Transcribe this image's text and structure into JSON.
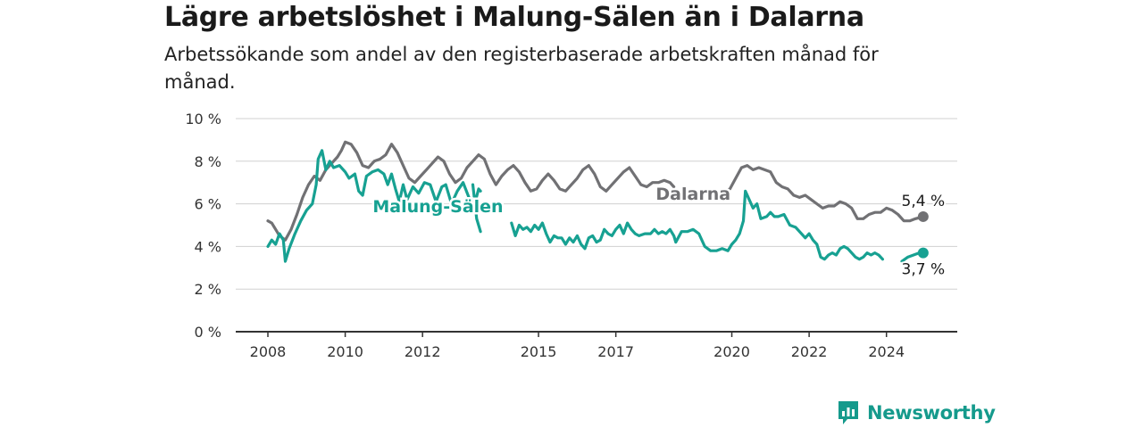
{
  "header": {
    "title": "Lägre arbetslöshet i Malung-Sälen än i Dalarna",
    "subtitle": "Arbetssökande som andel av den registerbaserade arbetskraften månad för månad."
  },
  "brand": {
    "name": "Newsworthy",
    "color": "#159a8c"
  },
  "colors": {
    "dalarna": "#717174",
    "malung": "#17a192",
    "grid": "#d0d0d0",
    "axis": "#333333"
  },
  "chart_data": {
    "type": "line",
    "title": "Lägre arbetslöshet i Malung-Sälen än i Dalarna",
    "subtitle": "Arbetssökande som andel av den registerbaserade arbetskraften månad för månad.",
    "xlabel": "",
    "ylabel": "",
    "xlim": [
      2008.0,
      2025.0
    ],
    "ylim": [
      0,
      10
    ],
    "yticks": [
      0,
      2,
      4,
      6,
      8,
      10
    ],
    "ytick_labels": [
      "0 %",
      "2 %",
      "4 %",
      "6 %",
      "8 %",
      "10 %"
    ],
    "xticks": [
      2008,
      2010,
      2012,
      2015,
      2017,
      2020,
      2022,
      2024
    ],
    "xtick_labels": [
      "2008",
      "2010",
      "2012",
      "2015",
      "2017",
      "2020",
      "2022",
      "2024"
    ],
    "grid": true,
    "series": [
      {
        "name": "Dalarna",
        "color": "#717174",
        "end_label": "5,4 %",
        "segments": [
          [
            [
              2008.0,
              5.2
            ],
            [
              2008.1,
              5.1
            ],
            [
              2008.2,
              4.8
            ],
            [
              2008.3,
              4.5
            ],
            [
              2008.45,
              4.3
            ],
            [
              2008.6,
              4.8
            ],
            [
              2008.75,
              5.5
            ],
            [
              2008.9,
              6.3
            ],
            [
              2009.05,
              6.9
            ],
            [
              2009.2,
              7.3
            ],
            [
              2009.35,
              7.1
            ],
            [
              2009.5,
              7.6
            ],
            [
              2009.65,
              7.9
            ],
            [
              2009.8,
              8.2
            ],
            [
              2009.9,
              8.5
            ],
            [
              2010.0,
              8.9
            ],
            [
              2010.15,
              8.8
            ],
            [
              2010.3,
              8.4
            ],
            [
              2010.45,
              7.8
            ],
            [
              2010.6,
              7.7
            ],
            [
              2010.75,
              8.0
            ],
            [
              2010.9,
              8.1
            ],
            [
              2011.05,
              8.3
            ],
            [
              2011.2,
              8.8
            ],
            [
              2011.35,
              8.4
            ],
            [
              2011.5,
              7.8
            ],
            [
              2011.65,
              7.2
            ],
            [
              2011.8,
              7.0
            ],
            [
              2011.95,
              7.3
            ],
            [
              2012.1,
              7.6
            ],
            [
              2012.25,
              7.9
            ],
            [
              2012.4,
              8.2
            ],
            [
              2012.55,
              8.0
            ],
            [
              2012.7,
              7.4
            ],
            [
              2012.85,
              7.0
            ],
            [
              2013.0,
              7.2
            ],
            [
              2013.15,
              7.7
            ],
            [
              2013.3,
              8.0
            ],
            [
              2013.45,
              8.3
            ],
            [
              2013.6,
              8.1
            ],
            [
              2013.75,
              7.4
            ],
            [
              2013.9,
              6.9
            ],
            [
              2014.05,
              7.3
            ],
            [
              2014.2,
              7.6
            ],
            [
              2014.35,
              7.8
            ],
            [
              2014.5,
              7.5
            ],
            [
              2014.65,
              7.0
            ],
            [
              2014.8,
              6.6
            ],
            [
              2014.95,
              6.7
            ],
            [
              2015.1,
              7.1
            ],
            [
              2015.25,
              7.4
            ],
            [
              2015.4,
              7.1
            ],
            [
              2015.55,
              6.7
            ],
            [
              2015.7,
              6.6
            ],
            [
              2015.85,
              6.9
            ],
            [
              2016.0,
              7.2
            ],
            [
              2016.15,
              7.6
            ],
            [
              2016.3,
              7.8
            ],
            [
              2016.45,
              7.4
            ],
            [
              2016.6,
              6.8
            ],
            [
              2016.75,
              6.6
            ],
            [
              2016.9,
              6.9
            ],
            [
              2017.05,
              7.2
            ],
            [
              2017.2,
              7.5
            ],
            [
              2017.35,
              7.7
            ],
            [
              2017.5,
              7.3
            ],
            [
              2017.65,
              6.9
            ],
            [
              2017.8,
              6.8
            ],
            [
              2017.95,
              7.0
            ],
            [
              2018.1,
              7.0
            ],
            [
              2018.25,
              7.1
            ],
            [
              2018.4,
              7.0
            ],
            [
              2018.5,
              6.8
            ]
          ],
          [
            [
              2019.85,
              6.6
            ],
            [
              2019.95,
              6.7
            ],
            [
              2020.1,
              7.2
            ],
            [
              2020.25,
              7.7
            ],
            [
              2020.4,
              7.8
            ],
            [
              2020.55,
              7.6
            ],
            [
              2020.7,
              7.7
            ],
            [
              2020.85,
              7.6
            ],
            [
              2021.0,
              7.5
            ],
            [
              2021.15,
              7.0
            ],
            [
              2021.3,
              6.8
            ],
            [
              2021.45,
              6.7
            ],
            [
              2021.6,
              6.4
            ],
            [
              2021.75,
              6.3
            ],
            [
              2021.9,
              6.4
            ],
            [
              2022.05,
              6.2
            ],
            [
              2022.2,
              6.0
            ],
            [
              2022.35,
              5.8
            ],
            [
              2022.5,
              5.9
            ],
            [
              2022.65,
              5.9
            ],
            [
              2022.8,
              6.1
            ],
            [
              2022.95,
              6.0
            ],
            [
              2023.1,
              5.8
            ],
            [
              2023.25,
              5.3
            ],
            [
              2023.4,
              5.3
            ],
            [
              2023.55,
              5.5
            ],
            [
              2023.7,
              5.6
            ],
            [
              2023.85,
              5.6
            ],
            [
              2024.0,
              5.8
            ],
            [
              2024.15,
              5.7
            ],
            [
              2024.3,
              5.5
            ],
            [
              2024.45,
              5.2
            ],
            [
              2024.6,
              5.2
            ],
            [
              2024.75,
              5.3
            ],
            [
              2024.95,
              5.4
            ]
          ]
        ]
      },
      {
        "name": "Malung-Sälen",
        "color": "#17a192",
        "end_label": "3,7 %",
        "segments": [
          [
            [
              2008.0,
              4.0
            ],
            [
              2008.1,
              4.3
            ],
            [
              2008.2,
              4.1
            ],
            [
              2008.3,
              4.6
            ],
            [
              2008.4,
              4.3
            ],
            [
              2008.45,
              3.3
            ],
            [
              2008.55,
              3.9
            ],
            [
              2008.7,
              4.6
            ],
            [
              2008.85,
              5.2
            ],
            [
              2009.0,
              5.7
            ],
            [
              2009.15,
              6.0
            ],
            [
              2009.25,
              6.9
            ],
            [
              2009.3,
              8.1
            ],
            [
              2009.4,
              8.5
            ],
            [
              2009.5,
              7.6
            ],
            [
              2009.6,
              8.0
            ],
            [
              2009.7,
              7.7
            ],
            [
              2009.85,
              7.8
            ],
            [
              2010.0,
              7.5
            ],
            [
              2010.1,
              7.2
            ],
            [
              2010.25,
              7.4
            ],
            [
              2010.35,
              6.6
            ],
            [
              2010.45,
              6.4
            ],
            [
              2010.55,
              7.3
            ],
            [
              2010.7,
              7.5
            ],
            [
              2010.85,
              7.6
            ],
            [
              2011.0,
              7.4
            ],
            [
              2011.1,
              6.9
            ],
            [
              2011.2,
              7.4
            ],
            [
              2011.3,
              6.7
            ],
            [
              2011.4,
              6.1
            ],
            [
              2011.5,
              6.9
            ],
            [
              2011.6,
              6.2
            ],
            [
              2011.75,
              6.8
            ],
            [
              2011.9,
              6.5
            ],
            [
              2012.05,
              7.0
            ],
            [
              2012.2,
              6.9
            ],
            [
              2012.35,
              6.1
            ],
            [
              2012.5,
              6.8
            ],
            [
              2012.6,
              6.9
            ],
            [
              2012.75,
              6.0
            ],
            [
              2012.9,
              6.6
            ],
            [
              2013.05,
              7.0
            ],
            [
              2013.2,
              6.3
            ],
            [
              2013.35,
              6.0
            ],
            [
              2013.45,
              6.7
            ],
            [
              2013.5,
              6.6
            ]
          ],
          [
            [
              2013.3,
              6.9
            ],
            [
              2013.4,
              5.3
            ],
            [
              2013.5,
              4.7
            ]
          ],
          [
            [
              2014.3,
              5.1
            ],
            [
              2014.4,
              4.5
            ],
            [
              2014.5,
              5.0
            ],
            [
              2014.6,
              4.8
            ],
            [
              2014.7,
              4.9
            ],
            [
              2014.8,
              4.7
            ],
            [
              2014.9,
              5.0
            ],
            [
              2015.0,
              4.8
            ],
            [
              2015.1,
              5.1
            ],
            [
              2015.2,
              4.6
            ],
            [
              2015.3,
              4.2
            ],
            [
              2015.4,
              4.5
            ],
            [
              2015.5,
              4.4
            ],
            [
              2015.6,
              4.4
            ],
            [
              2015.7,
              4.1
            ],
            [
              2015.8,
              4.4
            ],
            [
              2015.9,
              4.2
            ],
            [
              2016.0,
              4.5
            ],
            [
              2016.1,
              4.1
            ],
            [
              2016.2,
              3.9
            ],
            [
              2016.3,
              4.4
            ],
            [
              2016.4,
              4.5
            ],
            [
              2016.5,
              4.2
            ],
            [
              2016.6,
              4.3
            ],
            [
              2016.7,
              4.8
            ],
            [
              2016.8,
              4.6
            ],
            [
              2016.9,
              4.5
            ],
            [
              2017.0,
              4.8
            ],
            [
              2017.1,
              5.0
            ],
            [
              2017.2,
              4.6
            ],
            [
              2017.3,
              5.1
            ],
            [
              2017.4,
              4.8
            ],
            [
              2017.5,
              4.6
            ],
            [
              2017.6,
              4.5
            ],
            [
              2017.75,
              4.6
            ],
            [
              2017.9,
              4.6
            ],
            [
              2018.0,
              4.8
            ],
            [
              2018.1,
              4.6
            ],
            [
              2018.2,
              4.7
            ],
            [
              2018.3,
              4.6
            ],
            [
              2018.4,
              4.8
            ],
            [
              2018.5,
              4.5
            ],
            [
              2018.55,
              4.2
            ],
            [
              2018.7,
              4.7
            ],
            [
              2018.85,
              4.7
            ],
            [
              2019.0,
              4.8
            ],
            [
              2019.15,
              4.6
            ],
            [
              2019.3,
              4.0
            ],
            [
              2019.45,
              3.8
            ],
            [
              2019.6,
              3.8
            ],
            [
              2019.75,
              3.9
            ],
            [
              2019.9,
              3.8
            ],
            [
              2020.0,
              4.1
            ],
            [
              2020.1,
              4.3
            ],
            [
              2020.2,
              4.6
            ],
            [
              2020.3,
              5.2
            ],
            [
              2020.35,
              6.6
            ],
            [
              2020.45,
              6.2
            ],
            [
              2020.55,
              5.8
            ],
            [
              2020.65,
              6.0
            ],
            [
              2020.75,
              5.3
            ],
            [
              2020.9,
              5.4
            ],
            [
              2021.0,
              5.6
            ],
            [
              2021.1,
              5.4
            ],
            [
              2021.2,
              5.4
            ],
            [
              2021.35,
              5.5
            ],
            [
              2021.5,
              5.0
            ],
            [
              2021.65,
              4.9
            ],
            [
              2021.8,
              4.6
            ],
            [
              2021.9,
              4.4
            ],
            [
              2022.0,
              4.6
            ],
            [
              2022.1,
              4.3
            ],
            [
              2022.2,
              4.1
            ],
            [
              2022.3,
              3.5
            ],
            [
              2022.4,
              3.4
            ],
            [
              2022.5,
              3.6
            ],
            [
              2022.6,
              3.7
            ],
            [
              2022.7,
              3.6
            ],
            [
              2022.8,
              3.9
            ],
            [
              2022.9,
              4.0
            ],
            [
              2023.0,
              3.9
            ],
            [
              2023.1,
              3.7
            ],
            [
              2023.2,
              3.5
            ],
            [
              2023.3,
              3.4
            ],
            [
              2023.4,
              3.5
            ],
            [
              2023.5,
              3.7
            ],
            [
              2023.6,
              3.6
            ],
            [
              2023.7,
              3.7
            ],
            [
              2023.8,
              3.6
            ],
            [
              2023.9,
              3.4
            ]
          ],
          [
            [
              2024.4,
              3.3
            ],
            [
              2024.55,
              3.5
            ],
            [
              2024.7,
              3.6
            ],
            [
              2024.85,
              3.7
            ],
            [
              2024.95,
              3.7
            ]
          ]
        ]
      }
    ],
    "annotations": [
      {
        "text": "Malung-Sälen",
        "series": "Malung-Sälen",
        "x": 2012.4,
        "y": 5.6
      },
      {
        "text": "Dalarna",
        "series": "Dalarna",
        "x": 2019.0,
        "y": 6.2
      }
    ]
  }
}
